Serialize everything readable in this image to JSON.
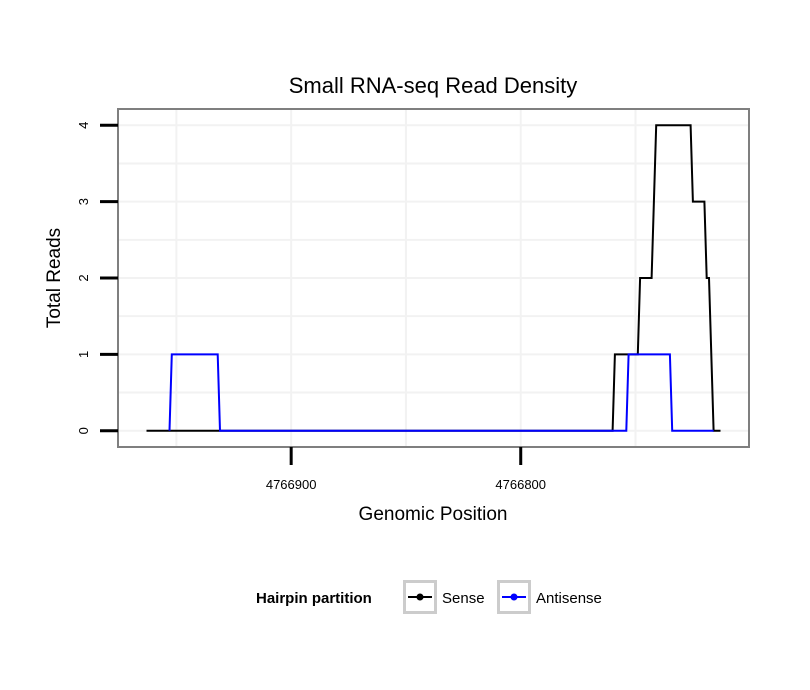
{
  "chart_data": {
    "type": "line",
    "title": "Small RNA-seq Read Density",
    "xlabel": "Genomic Position",
    "ylabel": "Total Reads",
    "x_reversed": true,
    "xlim": [
      4766975,
      4766701
    ],
    "ylim": [
      -0.2,
      4.2
    ],
    "x_ticks": [
      4766900,
      4766800
    ],
    "y_ticks": [
      0,
      1,
      2,
      3,
      4
    ],
    "legend": {
      "title": "Hairpin partition",
      "position": "bottom"
    },
    "series": [
      {
        "name": "Sense",
        "color": "#000000",
        "points": [
          [
            4766963,
            0
          ],
          [
            4766760,
            0
          ],
          [
            4766759,
            1
          ],
          [
            4766749,
            1
          ],
          [
            4766748,
            2
          ],
          [
            4766743,
            2
          ],
          [
            4766741,
            4
          ],
          [
            4766726,
            4
          ],
          [
            4766725,
            3
          ],
          [
            4766720,
            3
          ],
          [
            4766719,
            2
          ],
          [
            4766718,
            2
          ],
          [
            4766716,
            0
          ],
          [
            4766713,
            0
          ]
        ]
      },
      {
        "name": "Antisense",
        "color": "#0000ff",
        "points": [
          [
            4766953,
            0
          ],
          [
            4766952,
            1
          ],
          [
            4766932,
            1
          ],
          [
            4766931,
            0
          ],
          [
            4766754,
            0
          ],
          [
            4766753,
            1
          ],
          [
            4766735,
            1
          ],
          [
            4766734,
            0
          ],
          [
            4766716,
            0
          ]
        ]
      }
    ]
  }
}
